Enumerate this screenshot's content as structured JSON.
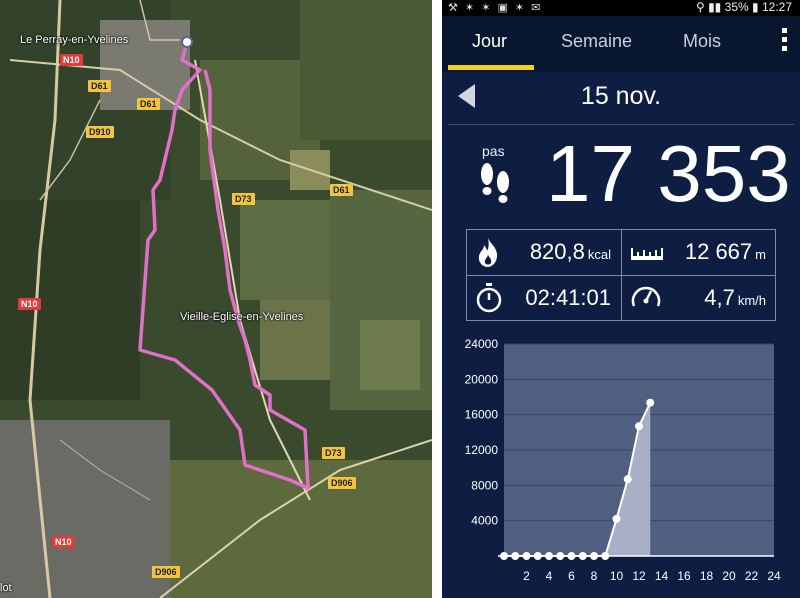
{
  "map": {
    "places": {
      "town_north": "Le Perray-en-Yvelines",
      "town_center": "Vieille-Eglise-en-Yvelines",
      "town_sw": "lot"
    },
    "roads": [
      "N10",
      "D61",
      "D61",
      "D910",
      "D73",
      "D61",
      "N10",
      "D73",
      "D906",
      "N10",
      "D906"
    ],
    "route_color": "#e070c8"
  },
  "status_bar": {
    "icons": "⚒ ✶ ✶ ▣ ✶ ✉",
    "battery": "35%",
    "time": "12:27"
  },
  "tabs": [
    {
      "label": "Jour",
      "active": true
    },
    {
      "label": "Semaine",
      "active": false
    },
    {
      "label": "Mois",
      "active": false
    }
  ],
  "day": {
    "date": "15 nov.",
    "steps_label": "pas",
    "steps": "17 353"
  },
  "stats": {
    "calories": {
      "value": "820,8",
      "unit": "kcal"
    },
    "distance": {
      "value": "12 667",
      "unit": "m"
    },
    "duration": {
      "value": "02:41:01"
    },
    "speed": {
      "value": "4,7",
      "unit": "km/h"
    }
  },
  "colors": {
    "accent": "#f3d21c",
    "background": "#0d1e42",
    "chart_area": "#a7b0c6"
  },
  "chart_data": {
    "type": "area",
    "x": [
      0,
      1,
      2,
      3,
      4,
      5,
      6,
      7,
      8,
      9,
      10,
      11,
      12,
      13
    ],
    "values": [
      0,
      0,
      0,
      0,
      0,
      0,
      0,
      0,
      0,
      0,
      4200,
      8700,
      14700,
      17353
    ],
    "xlim": [
      0,
      24
    ],
    "ylim": [
      0,
      24000
    ],
    "y_ticks": [
      4000,
      8000,
      12000,
      16000,
      20000,
      24000
    ],
    "x_ticks": [
      2,
      4,
      6,
      8,
      10,
      12,
      14,
      16,
      18,
      20,
      22,
      24
    ],
    "grid": true
  }
}
